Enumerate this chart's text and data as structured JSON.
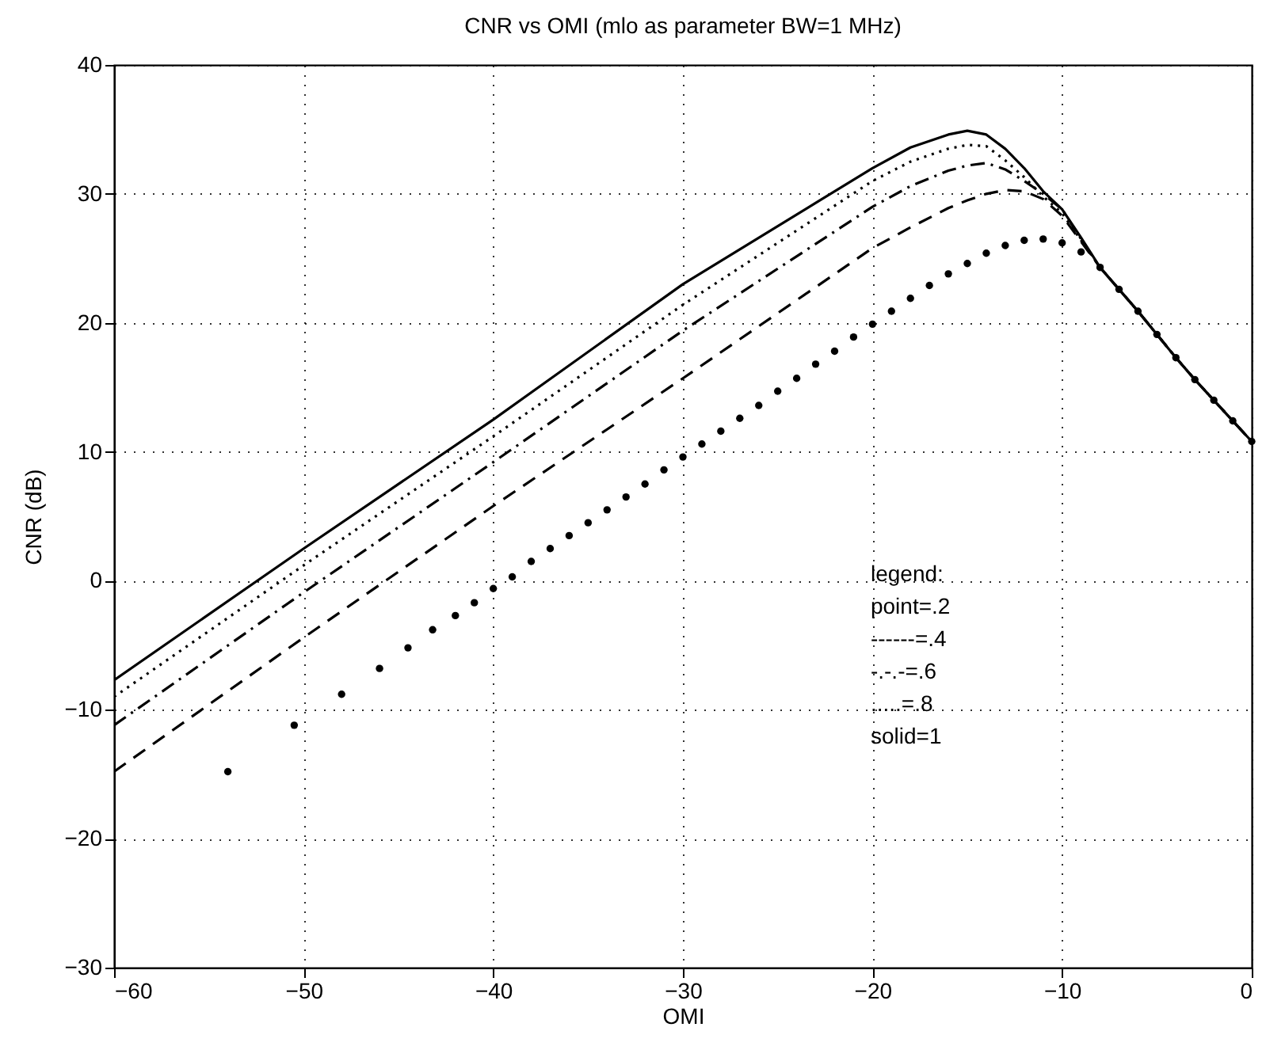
{
  "chart_data": {
    "type": "line",
    "title": "CNR vs OMI (mlo as parameter BW=1 MHz)",
    "xlabel": "OMI",
    "ylabel": "CNR  (dB)",
    "xlim": [
      -60,
      0
    ],
    "xticks": [
      -60,
      -50,
      -40,
      -30,
      -20,
      -10,
      0
    ],
    "ylim": [
      -30,
      40
    ],
    "yticks": [
      -30,
      -20,
      -10,
      0,
      10,
      20,
      30,
      40
    ],
    "grid": true,
    "annotations": [
      "legend:",
      "point=.2",
      "------=.4",
      "-.-.-=.6",
      ".....=.8",
      "solid=1"
    ],
    "series": [
      {
        "type": "scatter",
        "marker": "circle",
        "color": "#000000",
        "x": [
          -54,
          -50.5,
          -48,
          -46,
          -44.5,
          -43.2,
          -42,
          -41,
          -40,
          -39,
          -38,
          -37,
          -36,
          -35,
          -34,
          -33,
          -32,
          -31,
          -30,
          -29,
          -28,
          -27,
          -26,
          -25,
          -24,
          -23,
          -22,
          -21,
          -20,
          -19,
          -18,
          -17,
          -16,
          -15,
          -14,
          -13,
          -12,
          -11,
          -10,
          -9,
          -8,
          -7,
          -6,
          -5,
          -4,
          -3,
          -2,
          -1,
          0
        ],
        "values": [
          -14.8,
          -11.2,
          -8.8,
          -6.8,
          -5.2,
          -3.8,
          -2.7,
          -1.7,
          -0.6,
          0.3,
          1.5,
          2.5,
          3.5,
          4.5,
          5.5,
          6.5,
          7.5,
          8.6,
          9.6,
          10.6,
          11.6,
          12.6,
          13.6,
          14.7,
          15.7,
          16.8,
          17.8,
          18.9,
          19.9,
          20.9,
          21.9,
          22.9,
          23.8,
          24.6,
          25.4,
          26.0,
          26.4,
          26.5,
          26.2,
          25.5,
          24.3,
          22.6,
          20.9,
          19.1,
          17.3,
          15.6,
          14.0,
          12.4,
          10.8
        ]
      },
      {
        "line_style": "dashed",
        "color": "#000000",
        "x": [
          -60,
          -50,
          -40,
          -30,
          -20,
          -18,
          -16,
          -15,
          -14,
          -13,
          -12,
          -11,
          -10,
          -9,
          -8,
          -7,
          -6,
          -5,
          -4,
          -3,
          -2,
          -1,
          0
        ],
        "values": [
          -14.8,
          -4.4,
          5.8,
          15.7,
          25.8,
          27.4,
          28.9,
          29.5,
          30.0,
          30.3,
          30.2,
          29.6,
          28.3,
          26.3,
          24.3,
          22.6,
          20.9,
          19.1,
          17.3,
          15.6,
          14.0,
          12.4,
          10.8
        ]
      },
      {
        "line_style": "dashdot",
        "color": "#000000",
        "x": [
          -60,
          -50,
          -40,
          -30,
          -20,
          -18,
          -16,
          -15,
          -14,
          -13,
          -12,
          -11,
          -10,
          -9,
          -8,
          -7,
          -6,
          -5,
          -4,
          -3,
          -2,
          -1,
          0
        ],
        "values": [
          -11.2,
          -0.9,
          9.2,
          19.4,
          29.0,
          30.6,
          31.8,
          32.2,
          32.4,
          31.9,
          31.0,
          30.0,
          28.8,
          26.5,
          24.3,
          22.6,
          20.9,
          19.1,
          17.3,
          15.6,
          14.0,
          12.4,
          10.8
        ]
      },
      {
        "line_style": "dotted",
        "color": "#000000",
        "x": [
          -60,
          -50,
          -40,
          -30,
          -20,
          -18,
          -16,
          -15,
          -14,
          -13,
          -12,
          -11,
          -10,
          -9,
          -8,
          -7,
          -6,
          -5,
          -4,
          -3,
          -2,
          -1,
          0
        ],
        "values": [
          -9.0,
          1.2,
          11.2,
          21.4,
          31.0,
          32.5,
          33.5,
          33.8,
          33.7,
          32.6,
          31.3,
          29.8,
          28.5,
          26.4,
          24.3,
          22.6,
          20.9,
          19.1,
          17.3,
          15.6,
          14.0,
          12.4,
          10.8
        ]
      },
      {
        "line_style": "solid",
        "color": "#000000",
        "x": [
          -60,
          -50,
          -40,
          -30,
          -20,
          -18,
          -16,
          -15,
          -14,
          -13,
          -12,
          -11,
          -10,
          -9,
          -8,
          -7,
          -6,
          -5,
          -4,
          -3,
          -2,
          -1,
          0
        ],
        "values": [
          -7.7,
          2.5,
          12.5,
          23.0,
          32.0,
          33.6,
          34.6,
          34.9,
          34.6,
          33.5,
          32.0,
          30.2,
          28.8,
          26.6,
          24.3,
          22.6,
          20.9,
          19.1,
          17.3,
          15.6,
          14.0,
          12.4,
          10.8
        ]
      }
    ]
  }
}
